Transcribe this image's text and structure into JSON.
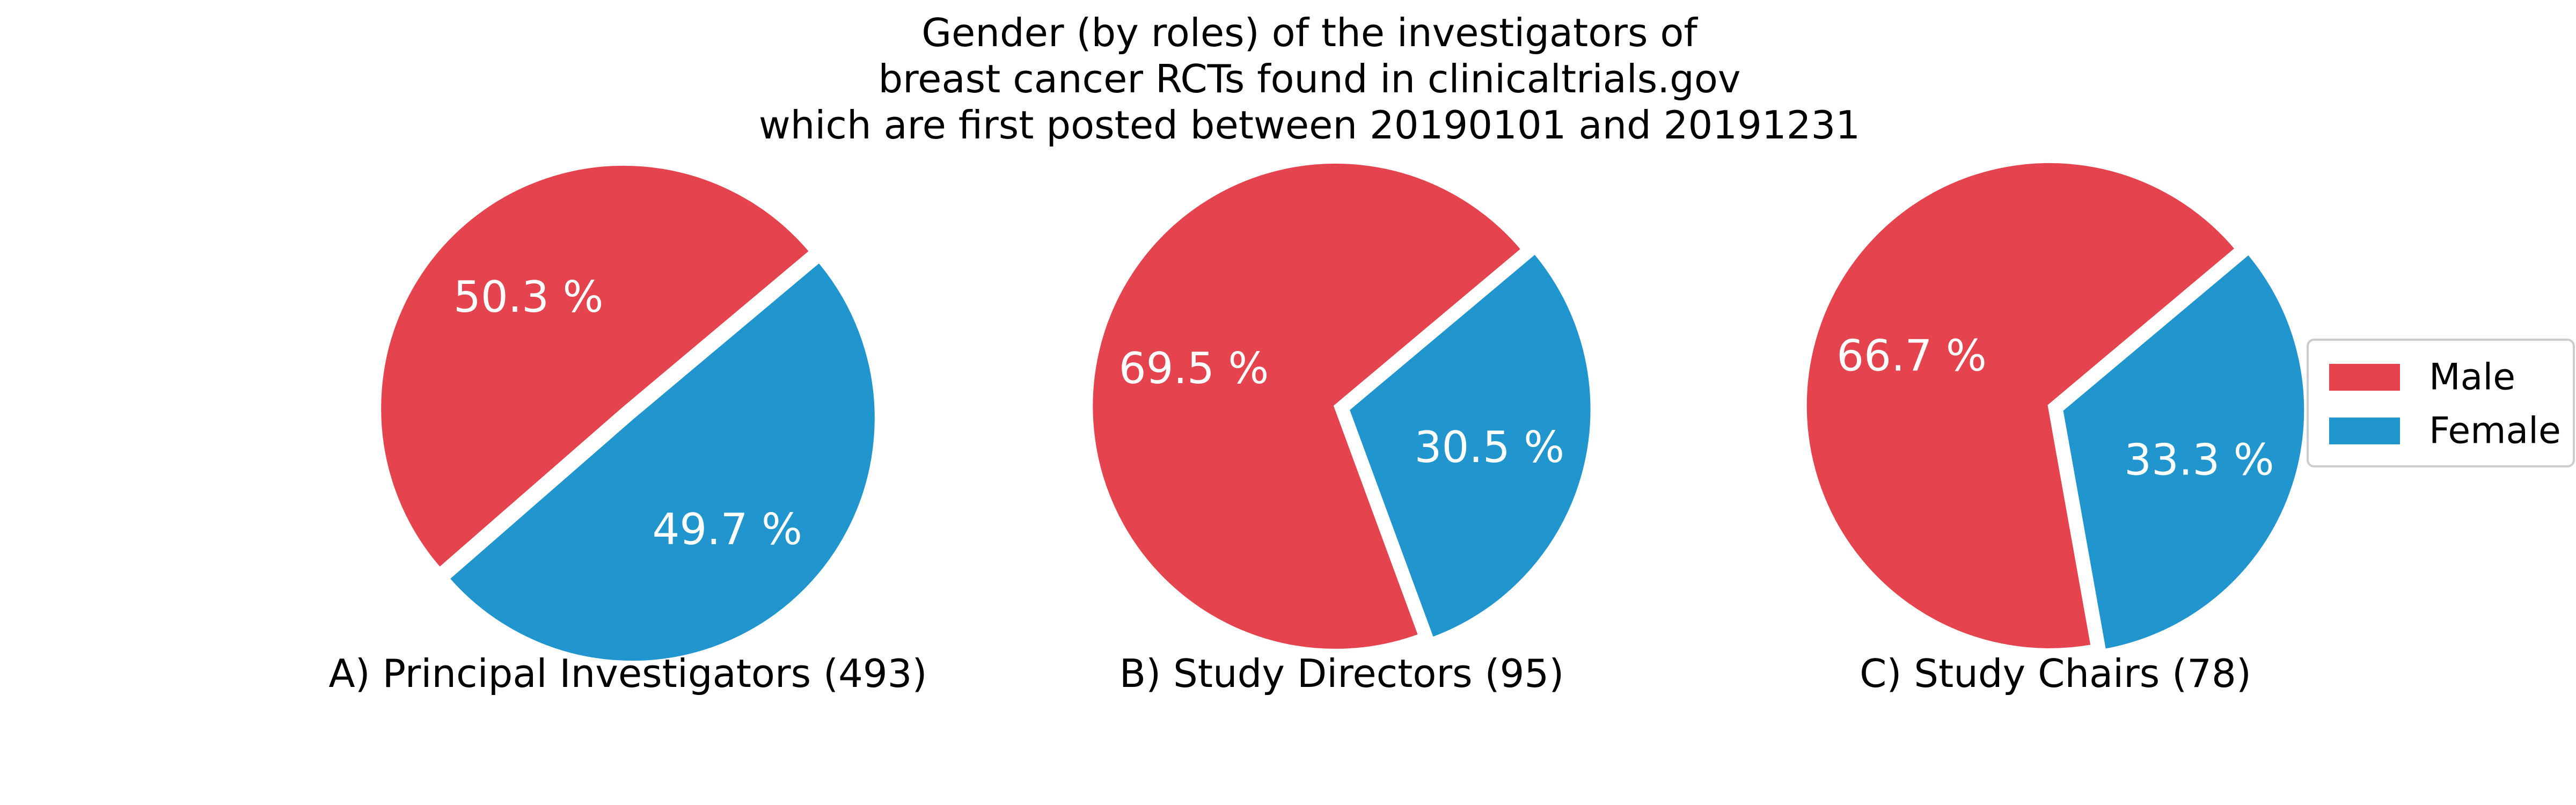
{
  "chart_data": {
    "type": "pie",
    "title": [
      "Gender (by roles) of the investigators of",
      "breast cancer RCTs found in clinicaltrials.gov",
      "which are first posted between 20190101 and 20191231"
    ],
    "legend": {
      "placement": "right",
      "entries": [
        "Male",
        "Female"
      ]
    },
    "colors": {
      "Male": "#E5444F",
      "Female": "#2196CE"
    },
    "pies": [
      {
        "caption": "A) Principal Investigators (493)",
        "values": {
          "Male": 50.3,
          "Female": 49.7
        },
        "labels": [
          "50.3 %",
          "49.7 %"
        ]
      },
      {
        "caption": "B) Study Directors (95)",
        "values": {
          "Male": 69.5,
          "Female": 30.5
        },
        "labels": [
          "69.5 %",
          "30.5 %"
        ]
      },
      {
        "caption": "C) Study Chairs (78)",
        "values": {
          "Male": 66.7,
          "Female": 33.3
        },
        "labels": [
          "66.7 %",
          "33.3 %"
        ]
      }
    ]
  }
}
